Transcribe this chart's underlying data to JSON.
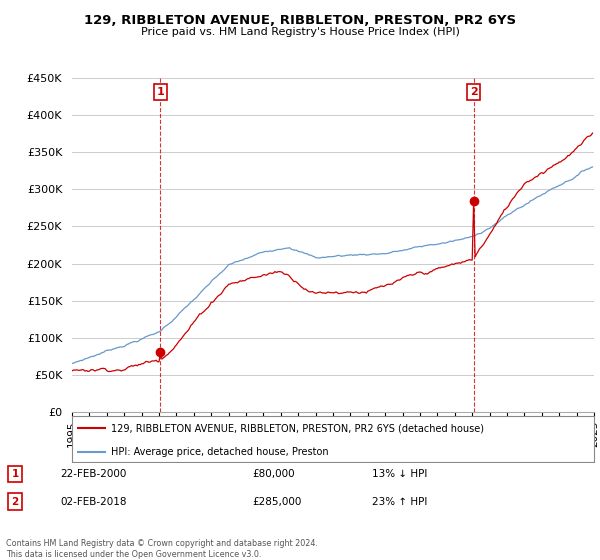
{
  "title": "129, RIBBLETON AVENUE, RIBBLETON, PRESTON, PR2 6YS",
  "subtitle": "Price paid vs. HM Land Registry's House Price Index (HPI)",
  "legend_line1": "129, RIBBLETON AVENUE, RIBBLETON, PRESTON, PR2 6YS (detached house)",
  "legend_line2": "HPI: Average price, detached house, Preston",
  "sale1_date": "22-FEB-2000",
  "sale1_price": "£80,000",
  "sale1_hpi": "13% ↓ HPI",
  "sale2_date": "02-FEB-2018",
  "sale2_price": "£285,000",
  "sale2_hpi": "23% ↑ HPI",
  "footer": "Contains HM Land Registry data © Crown copyright and database right 2024.\nThis data is licensed under the Open Government Licence v3.0.",
  "red_color": "#cc0000",
  "blue_color": "#6699cc",
  "background_color": "#ffffff",
  "grid_color": "#cccccc",
  "ylim_min": 0,
  "ylim_max": 450000,
  "xlim_min": 1995,
  "xlim_max": 2025
}
